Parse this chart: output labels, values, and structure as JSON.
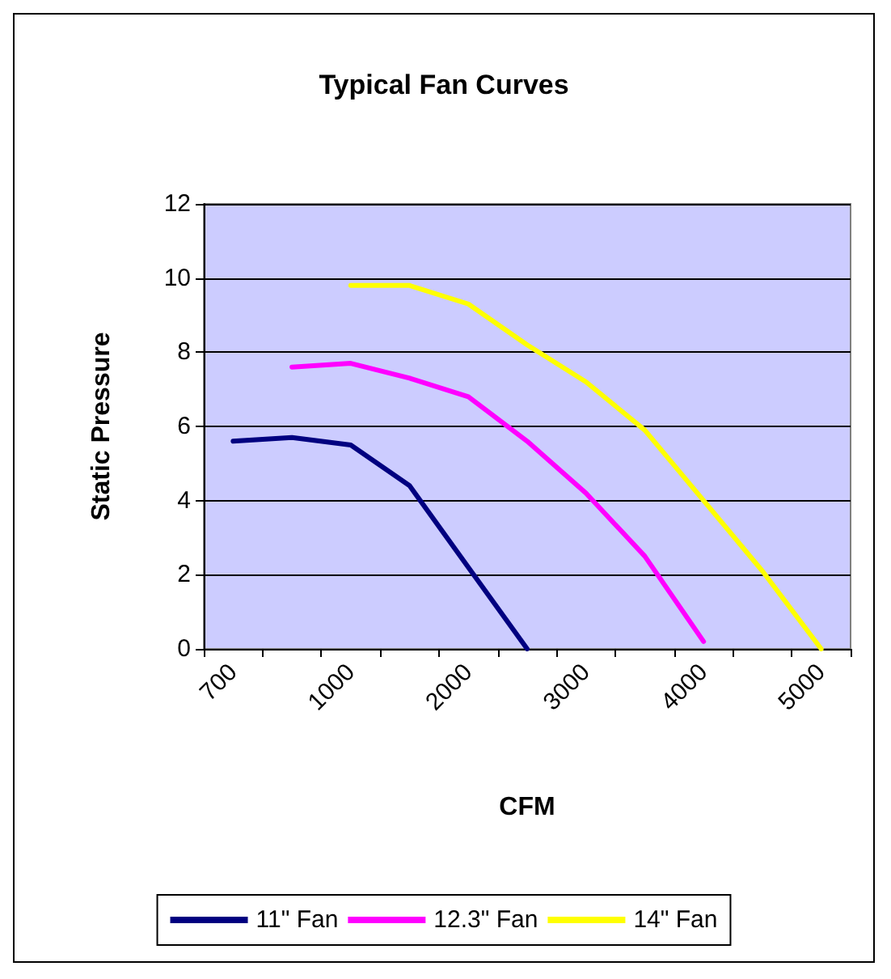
{
  "chart_data": {
    "type": "line",
    "title": "Typical Fan Curves",
    "xlabel": "CFM",
    "ylabel": "Static Pressure",
    "categories": [
      "700",
      null,
      "1000",
      null,
      "2000",
      null,
      "3000",
      null,
      "4000",
      null,
      "5000"
    ],
    "series": [
      {
        "name": "11\" Fan",
        "color": "#000080",
        "values": [
          5.6,
          5.7,
          5.5,
          4.4,
          2.2,
          0,
          null,
          null,
          null,
          null,
          null
        ]
      },
      {
        "name": "12.3\" Fan",
        "color": "#ff00ff",
        "values": [
          null,
          7.6,
          7.7,
          7.3,
          6.8,
          5.6,
          4.2,
          2.5,
          0.2,
          null,
          null
        ]
      },
      {
        "name": "14\" Fan",
        "color": "#ffff00",
        "values": [
          null,
          null,
          9.8,
          9.8,
          9.3,
          8.2,
          7.2,
          5.9,
          4.0,
          2.1,
          0
        ]
      }
    ],
    "ylim": [
      0,
      12
    ],
    "yticks": [
      0,
      2,
      4,
      6,
      8,
      10,
      12
    ],
    "grid": "y",
    "legend": "bottom",
    "marker": "none",
    "line_style": "solid"
  }
}
